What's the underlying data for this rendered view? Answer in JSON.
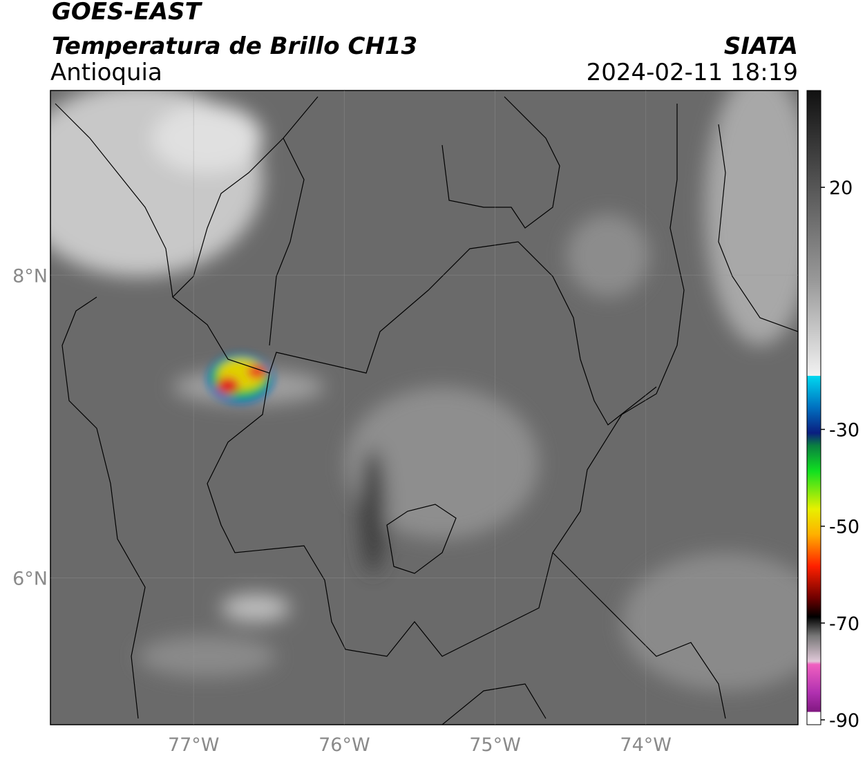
{
  "header": {
    "title": "GOES-EAST",
    "subtitle": "Temperatura de Brillo CH13",
    "region": "Antioquia",
    "source": "SIATA",
    "datetime": "2024-02-11 18:19"
  },
  "map": {
    "xlim": [
      -77.95,
      -72.99
    ],
    "ylim": [
      5.03,
      9.22
    ],
    "xticks": [
      {
        "value": -77,
        "label": "77°W"
      },
      {
        "value": -76,
        "label": "76°W"
      },
      {
        "value": -75,
        "label": "75°W"
      },
      {
        "value": -74,
        "label": "74°W"
      }
    ],
    "yticks": [
      {
        "value": 8,
        "label": "8°N"
      },
      {
        "value": 6,
        "label": "6°N"
      }
    ],
    "grid": true,
    "colorbar": {
      "lim": [
        -91,
        40
      ],
      "ticks": [
        20,
        -30,
        -50,
        -70,
        -90
      ]
    }
  }
}
